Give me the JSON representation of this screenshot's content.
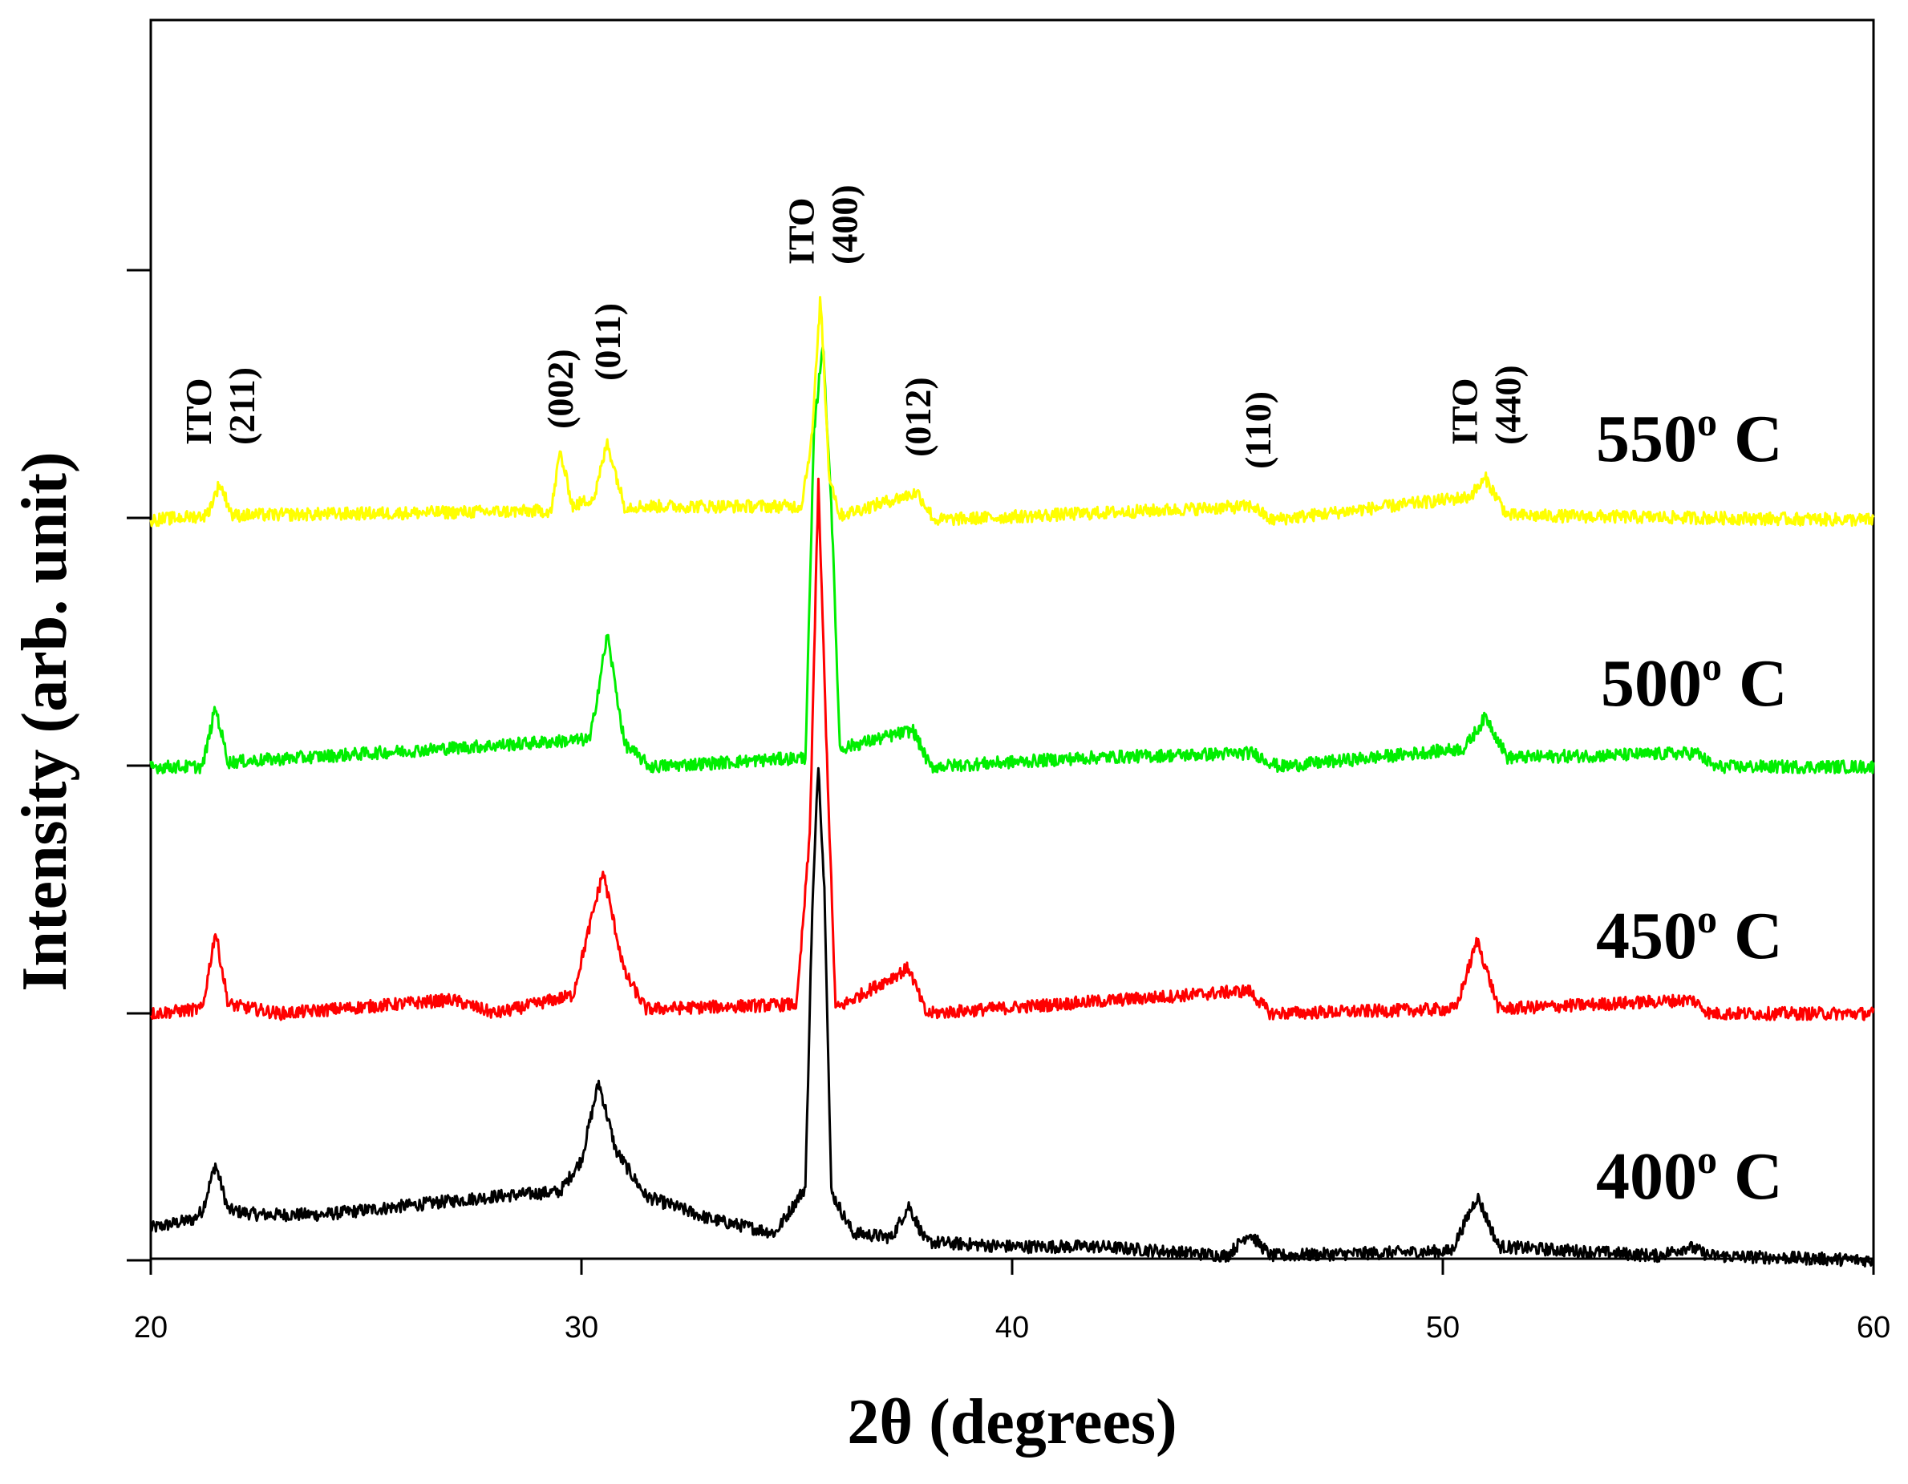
{
  "chart_data": {
    "type": "line",
    "xlabel": "2θ (degrees)",
    "ylabel": "Intensity (arb. unit)",
    "xlim": [
      20,
      60
    ],
    "x_ticks": [
      "20",
      "30",
      "40",
      "50",
      "60"
    ],
    "y_ticks_labeled": false,
    "grid": false,
    "series": [
      {
        "name": "400",
        "color": "#000000",
        "baseline": 0,
        "points": [
          [
            20,
            0.7
          ],
          [
            21,
            0.9
          ],
          [
            21.2,
            1.1
          ],
          [
            21.5,
            2.1
          ],
          [
            21.8,
            1.1
          ],
          [
            22.5,
            1.0
          ],
          [
            24,
            1.0
          ],
          [
            26,
            1.2
          ],
          [
            28,
            1.4
          ],
          [
            29.5,
            1.5
          ],
          [
            30,
            2.2
          ],
          [
            30.4,
            3.9
          ],
          [
            30.8,
            2.4
          ],
          [
            31.5,
            1.4
          ],
          [
            33,
            0.9
          ],
          [
            34.5,
            0.6
          ],
          [
            35.2,
            1.6
          ],
          [
            35.35,
            7.4
          ],
          [
            35.5,
            10.9
          ],
          [
            35.65,
            7.9
          ],
          [
            35.8,
            1.5
          ],
          [
            36.3,
            0.6
          ],
          [
            37.2,
            0.5
          ],
          [
            37.6,
            1.2
          ],
          [
            38,
            0.4
          ],
          [
            40,
            0.3
          ],
          [
            42,
            0.3
          ],
          [
            45,
            0.1
          ],
          [
            45.5,
            0.6
          ],
          [
            46,
            0.1
          ],
          [
            50.2,
            0.2
          ],
          [
            50.8,
            1.4
          ],
          [
            51.3,
            0.3
          ],
          [
            55,
            0.1
          ],
          [
            55.7,
            0.3
          ],
          [
            56.2,
            0.1
          ],
          [
            60,
            0.0
          ]
        ]
      },
      {
        "name": "450",
        "color": "#ff0000",
        "baseline": 5.4,
        "points": [
          [
            20,
            0
          ],
          [
            21.2,
            0.1
          ],
          [
            21.5,
            1.8
          ],
          [
            21.8,
            0.2
          ],
          [
            23,
            0
          ],
          [
            27,
            0.3
          ],
          [
            28,
            0
          ],
          [
            29.8,
            0.4
          ],
          [
            30.5,
            3.1
          ],
          [
            31.0,
            0.9
          ],
          [
            31.5,
            0.1
          ],
          [
            35.0,
            0.2
          ],
          [
            35.3,
            3.9
          ],
          [
            35.5,
            11.6
          ],
          [
            35.7,
            5.6
          ],
          [
            35.9,
            0.1
          ],
          [
            37.6,
            1.0
          ],
          [
            38,
            0
          ],
          [
            45.5,
            0.5
          ],
          [
            46,
            0
          ],
          [
            50.3,
            0.1
          ],
          [
            50.8,
            1.6
          ],
          [
            51.3,
            0.1
          ],
          [
            55.8,
            0.3
          ],
          [
            56.2,
            0
          ],
          [
            60,
            0
          ]
        ]
      },
      {
        "name": "500",
        "color": "#00ee00",
        "baseline": 10.8,
        "points": [
          [
            20,
            0
          ],
          [
            21.2,
            0
          ],
          [
            21.5,
            1.3
          ],
          [
            21.8,
            0.1
          ],
          [
            30.2,
            0.6
          ],
          [
            30.6,
            2.9
          ],
          [
            31.0,
            0.5
          ],
          [
            31.6,
            0
          ],
          [
            35.2,
            0.2
          ],
          [
            35.4,
            7.3
          ],
          [
            35.6,
            9.3
          ],
          [
            35.8,
            5.8
          ],
          [
            36.0,
            0.4
          ],
          [
            37.7,
            0.8
          ],
          [
            38.1,
            0
          ],
          [
            41.8,
            0.2
          ],
          [
            45.6,
            0.3
          ],
          [
            46.2,
            0
          ],
          [
            50.5,
            0.4
          ],
          [
            51.0,
            1.1
          ],
          [
            51.5,
            0.2
          ],
          [
            55.9,
            0.3
          ],
          [
            56.3,
            0
          ],
          [
            60,
            0
          ]
        ]
      },
      {
        "name": "550",
        "color": "#ffff00",
        "baseline": 16.2,
        "points": [
          [
            20,
            0
          ],
          [
            21.3,
            0.1
          ],
          [
            21.6,
            0.8
          ],
          [
            21.9,
            0.1
          ],
          [
            29.3,
            0.2
          ],
          [
            29.5,
            1.5
          ],
          [
            29.8,
            0.3
          ],
          [
            30.3,
            0.5
          ],
          [
            30.6,
            1.7
          ],
          [
            31.0,
            0.3
          ],
          [
            35.1,
            0.3
          ],
          [
            35.35,
            1.8
          ],
          [
            35.55,
            4.9
          ],
          [
            35.75,
            1.0
          ],
          [
            36.0,
            0.1
          ],
          [
            37.8,
            0.6
          ],
          [
            38.2,
            0
          ],
          [
            45.6,
            0.3
          ],
          [
            46.0,
            0
          ],
          [
            50.6,
            0.5
          ],
          [
            51.0,
            0.9
          ],
          [
            51.5,
            0.1
          ],
          [
            60,
            0
          ]
        ]
      }
    ],
    "temperature_labels": [
      {
        "value": "550",
        "sup": "o",
        "unit": " C"
      },
      {
        "value": "500",
        "sup": "o",
        "unit": " C"
      },
      {
        "value": "450",
        "sup": "o",
        "unit": " C"
      },
      {
        "value": "400",
        "sup": "o",
        "unit": " C"
      }
    ],
    "peak_annotations": [
      {
        "lines": [
          "ITO",
          "(211)"
        ],
        "x": 21.6
      },
      {
        "lines": [
          "(002)"
        ],
        "x": 29.5
      },
      {
        "lines": [
          "(011)"
        ],
        "x": 30.6
      },
      {
        "lines": [
          "ITO",
          "(400)"
        ],
        "x": 35.6
      },
      {
        "lines": [
          "(012)"
        ],
        "x": 37.8
      },
      {
        "lines": [
          "(110)"
        ],
        "x": 45.7
      },
      {
        "lines": [
          "ITO",
          "(440)"
        ],
        "x": 51.0
      }
    ]
  }
}
